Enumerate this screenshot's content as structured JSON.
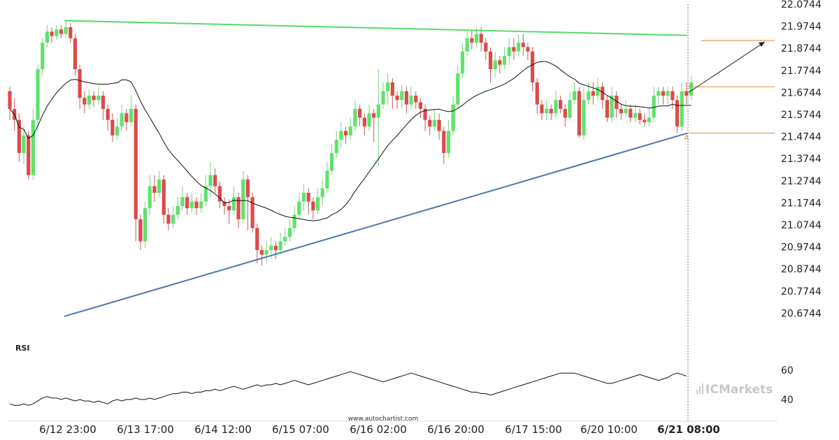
{
  "chart_data": {
    "type": "candlestick",
    "price_axis": {
      "range": [
        20.5744,
        22.0744
      ],
      "ticks": [
        "22.0744",
        "21.9744",
        "21.8744",
        "21.7744",
        "21.6744",
        "21.5744",
        "21.4744",
        "21.3744",
        "21.2744",
        "21.1744",
        "21.0744",
        "20.9744",
        "20.8744",
        "20.7744",
        "20.6744"
      ]
    },
    "time_axis": {
      "labels": [
        "6/12 23:00",
        "6/13 17:00",
        "6/14 12:00",
        "6/15 07:00",
        "6/16 02:00",
        "6/16 20:00",
        "6/17 15:00",
        "6/20 10:00",
        "6/21 08:00"
      ],
      "highlighted": "6/21 08:00"
    },
    "pattern": {
      "resistance_start": 22.0,
      "resistance_end": 21.933,
      "support_start": 20.66,
      "support_end": 21.49
    },
    "levels": [
      21.91,
      21.7,
      21.49
    ],
    "point_marker": "A",
    "rsi": {
      "label": "RSI",
      "range": [
        30,
        70
      ],
      "ticks": [
        "60",
        "40"
      ],
      "values": [
        37,
        36,
        36,
        37,
        36,
        37,
        39,
        41,
        42,
        41,
        41,
        40,
        41,
        40,
        39,
        40,
        39,
        39,
        38,
        39,
        38,
        37,
        39,
        40,
        39,
        40,
        40,
        41,
        40,
        40,
        41,
        40,
        41,
        42,
        43,
        44,
        44,
        45,
        45,
        44,
        45,
        45,
        46,
        46,
        47,
        46,
        47,
        48,
        49,
        48,
        47,
        48,
        49,
        50,
        49,
        50,
        50,
        51,
        50,
        51,
        52,
        53,
        52,
        51,
        50,
        51,
        52,
        53,
        54,
        55,
        56,
        57,
        58,
        59,
        58,
        57,
        56,
        55,
        54,
        53,
        52,
        53,
        54,
        55,
        56,
        57,
        58,
        57,
        56,
        55,
        54,
        53,
        52,
        51,
        50,
        49,
        48,
        47,
        46,
        45,
        45,
        44,
        44,
        43,
        44,
        45,
        46,
        47,
        48,
        49,
        50,
        51,
        52,
        53,
        54,
        55,
        56,
        57,
        58,
        58,
        58,
        58,
        57,
        56,
        55,
        54,
        53,
        52,
        51,
        51,
        52,
        53,
        54,
        55,
        56,
        57,
        56,
        55,
        54,
        53,
        54,
        55,
        57,
        58,
        57,
        56
      ]
    },
    "candles": [
      [
        21.68,
        21.6,
        21.7,
        21.55
      ],
      [
        21.6,
        21.55,
        21.65,
        21.5
      ],
      [
        21.55,
        21.4,
        21.58,
        21.36
      ],
      [
        21.4,
        21.48,
        21.52,
        21.35
      ],
      [
        21.48,
        21.3,
        21.5,
        21.28
      ],
      [
        21.3,
        21.55,
        21.6,
        21.28
      ],
      [
        21.55,
        21.78,
        21.8,
        21.5
      ],
      [
        21.78,
        21.9,
        21.92,
        21.75
      ],
      [
        21.9,
        21.95,
        21.98,
        21.88
      ],
      [
        21.95,
        21.93,
        21.97,
        21.9
      ],
      [
        21.93,
        21.96,
        21.98,
        21.91
      ],
      [
        21.96,
        21.94,
        21.98,
        21.92
      ],
      [
        21.94,
        21.97,
        22.0,
        21.92
      ],
      [
        21.97,
        21.92,
        21.99,
        21.9
      ],
      [
        21.92,
        21.78,
        21.94,
        21.75
      ],
      [
        21.78,
        21.65,
        21.8,
        21.6
      ],
      [
        21.65,
        21.62,
        21.68,
        21.58
      ],
      [
        21.62,
        21.66,
        21.69,
        21.6
      ],
      [
        21.66,
        21.64,
        21.68,
        21.61
      ],
      [
        21.64,
        21.66,
        21.7,
        21.62
      ],
      [
        21.66,
        21.6,
        21.68,
        21.55
      ],
      [
        21.6,
        21.55,
        21.62,
        21.5
      ],
      [
        21.55,
        21.48,
        21.58,
        21.45
      ],
      [
        21.48,
        21.52,
        21.56,
        21.46
      ],
      [
        21.52,
        21.58,
        21.62,
        21.5
      ],
      [
        21.58,
        21.54,
        21.6,
        21.5
      ],
      [
        21.54,
        21.6,
        21.66,
        21.52
      ],
      [
        21.6,
        21.1,
        21.62,
        21.0
      ],
      [
        21.1,
        21.0,
        21.12,
        20.96
      ],
      [
        21.0,
        21.15,
        21.18,
        20.97
      ],
      [
        21.15,
        21.25,
        21.3,
        21.12
      ],
      [
        21.25,
        21.22,
        21.3,
        21.18
      ],
      [
        21.22,
        21.28,
        21.32,
        21.2
      ],
      [
        21.28,
        21.12,
        21.3,
        21.08
      ],
      [
        21.12,
        21.08,
        21.15,
        21.05
      ],
      [
        21.08,
        21.12,
        21.16,
        21.06
      ],
      [
        21.12,
        21.16,
        21.2,
        21.1
      ],
      [
        21.16,
        21.2,
        21.25,
        21.14
      ],
      [
        21.2,
        21.15,
        21.22,
        21.12
      ],
      [
        21.15,
        21.18,
        21.22,
        21.13
      ],
      [
        21.18,
        21.15,
        21.2,
        21.12
      ],
      [
        21.15,
        21.18,
        21.22,
        21.13
      ],
      [
        21.18,
        21.25,
        21.3,
        21.16
      ],
      [
        21.25,
        21.3,
        21.36,
        21.2
      ],
      [
        21.3,
        21.25,
        21.33,
        21.22
      ],
      [
        21.25,
        21.18,
        21.27,
        21.15
      ],
      [
        21.18,
        21.16,
        21.2,
        21.12
      ],
      [
        21.16,
        21.14,
        21.19,
        21.08
      ],
      [
        21.14,
        21.2,
        21.25,
        21.12
      ],
      [
        21.2,
        21.1,
        21.22,
        21.06
      ],
      [
        21.1,
        21.28,
        21.32,
        21.08
      ],
      [
        21.28,
        21.2,
        21.3,
        21.05
      ],
      [
        21.2,
        21.06,
        21.22,
        21.04
      ],
      [
        21.06,
        20.96,
        21.08,
        20.9
      ],
      [
        20.96,
        20.94,
        20.98,
        20.89
      ],
      [
        20.94,
        20.96,
        21.0,
        20.9
      ],
      [
        20.96,
        20.98,
        21.02,
        20.92
      ],
      [
        20.98,
        20.96,
        21.0,
        20.92
      ],
      [
        20.96,
        21.0,
        21.04,
        20.94
      ],
      [
        21.0,
        21.02,
        21.06,
        20.98
      ],
      [
        21.02,
        21.06,
        21.1,
        21.0
      ],
      [
        21.06,
        21.12,
        21.16,
        21.04
      ],
      [
        21.12,
        21.18,
        21.22,
        21.1
      ],
      [
        21.18,
        21.22,
        21.26,
        21.14
      ],
      [
        21.22,
        21.18,
        21.24,
        21.12
      ],
      [
        21.18,
        21.14,
        21.2,
        21.1
      ],
      [
        21.14,
        21.2,
        21.24,
        21.12
      ],
      [
        21.2,
        21.24,
        21.28,
        21.16
      ],
      [
        21.24,
        21.32,
        21.36,
        21.22
      ],
      [
        21.32,
        21.4,
        21.44,
        21.3
      ],
      [
        21.4,
        21.46,
        21.5,
        21.38
      ],
      [
        21.46,
        21.5,
        21.54,
        21.42
      ],
      [
        21.5,
        21.48,
        21.52,
        21.44
      ],
      [
        21.48,
        21.52,
        21.56,
        21.46
      ],
      [
        21.52,
        21.6,
        21.64,
        21.5
      ],
      [
        21.6,
        21.56,
        21.62,
        21.52
      ],
      [
        21.56,
        21.52,
        21.58,
        21.48
      ],
      [
        21.52,
        21.58,
        21.62,
        21.5
      ],
      [
        21.58,
        21.56,
        21.6,
        21.45
      ],
      [
        21.56,
        21.62,
        21.78,
        21.34
      ],
      [
        21.62,
        21.68,
        21.72,
        21.6
      ],
      [
        21.68,
        21.72,
        21.76,
        21.62
      ],
      [
        21.72,
        21.66,
        21.74,
        21.6
      ],
      [
        21.66,
        21.64,
        21.68,
        21.6
      ],
      [
        21.64,
        21.68,
        21.71,
        21.6
      ],
      [
        21.68,
        21.62,
        21.7,
        21.58
      ],
      [
        21.62,
        21.66,
        21.7,
        21.6
      ],
      [
        21.66,
        21.63,
        21.68,
        21.6
      ],
      [
        21.63,
        21.6,
        21.65,
        21.56
      ],
      [
        21.6,
        21.55,
        21.62,
        21.5
      ],
      [
        21.55,
        21.52,
        21.57,
        21.48
      ],
      [
        21.52,
        21.55,
        21.6,
        21.5
      ],
      [
        21.55,
        21.5,
        21.58,
        21.46
      ],
      [
        21.5,
        21.4,
        21.52,
        21.35
      ],
      [
        21.4,
        21.5,
        21.55,
        21.38
      ],
      [
        21.5,
        21.62,
        21.66,
        21.48
      ],
      [
        21.62,
        21.76,
        21.8,
        21.6
      ],
      [
        21.76,
        21.86,
        21.9,
        21.74
      ],
      [
        21.86,
        21.92,
        21.95,
        21.84
      ],
      [
        21.92,
        21.9,
        21.96,
        21.87
      ],
      [
        21.9,
        21.94,
        21.97,
        21.88
      ],
      [
        21.94,
        21.9,
        21.97,
        21.86
      ],
      [
        21.9,
        21.86,
        21.92,
        21.82
      ],
      [
        21.86,
        21.78,
        21.88,
        21.72
      ],
      [
        21.78,
        21.82,
        21.86,
        21.74
      ],
      [
        21.82,
        21.8,
        21.84,
        21.76
      ],
      [
        21.8,
        21.84,
        21.88,
        21.78
      ],
      [
        21.84,
        21.88,
        21.92,
        21.8
      ],
      [
        21.88,
        21.86,
        21.92,
        21.82
      ],
      [
        21.86,
        21.9,
        21.94,
        21.84
      ],
      [
        21.9,
        21.88,
        21.94,
        21.84
      ],
      [
        21.88,
        21.86,
        21.9,
        21.82
      ],
      [
        21.86,
        21.72,
        21.88,
        21.68
      ],
      [
        21.72,
        21.62,
        21.74,
        21.58
      ],
      [
        21.62,
        21.58,
        21.64,
        21.55
      ],
      [
        21.58,
        21.6,
        21.64,
        21.55
      ],
      [
        21.6,
        21.58,
        21.62,
        21.55
      ],
      [
        21.58,
        21.64,
        21.68,
        21.56
      ],
      [
        21.64,
        21.6,
        21.66,
        21.58
      ],
      [
        21.6,
        21.56,
        21.62,
        21.52
      ],
      [
        21.56,
        21.64,
        21.68,
        21.55
      ],
      [
        21.64,
        21.68,
        21.72,
        21.62
      ],
      [
        21.68,
        21.48,
        21.7,
        21.47
      ],
      [
        21.48,
        21.64,
        21.7,
        21.46
      ],
      [
        21.64,
        21.68,
        21.72,
        21.62
      ],
      [
        21.68,
        21.66,
        21.72,
        21.62
      ],
      [
        21.66,
        21.7,
        21.74,
        21.64
      ],
      [
        21.7,
        21.64,
        21.72,
        21.6
      ],
      [
        21.64,
        21.56,
        21.66,
        21.54
      ],
      [
        21.56,
        21.66,
        21.7,
        21.54
      ],
      [
        21.66,
        21.6,
        21.68,
        21.56
      ],
      [
        21.6,
        21.58,
        21.62,
        21.55
      ],
      [
        21.58,
        21.6,
        21.64,
        21.56
      ],
      [
        21.6,
        21.56,
        21.62,
        21.54
      ],
      [
        21.56,
        21.58,
        21.62,
        21.54
      ],
      [
        21.58,
        21.55,
        21.6,
        21.53
      ],
      [
        21.55,
        21.54,
        21.58,
        21.52
      ],
      [
        21.54,
        21.56,
        21.6,
        21.52
      ],
      [
        21.56,
        21.66,
        21.7,
        21.54
      ],
      [
        21.66,
        21.68,
        21.7,
        21.62
      ],
      [
        21.68,
        21.66,
        21.7,
        21.62
      ],
      [
        21.66,
        21.68,
        21.7,
        21.62
      ],
      [
        21.68,
        21.64,
        21.7,
        21.6
      ],
      [
        21.64,
        21.52,
        21.66,
        21.49
      ],
      [
        21.52,
        21.68,
        21.72,
        21.5
      ],
      [
        21.68,
        21.66,
        21.72,
        21.62
      ],
      [
        21.66,
        21.72,
        21.75,
        21.64
      ]
    ]
  },
  "footer": {
    "watermark": "www.autochartist.com",
    "brand_prefix": "IC",
    "brand_name": "Markets"
  }
}
